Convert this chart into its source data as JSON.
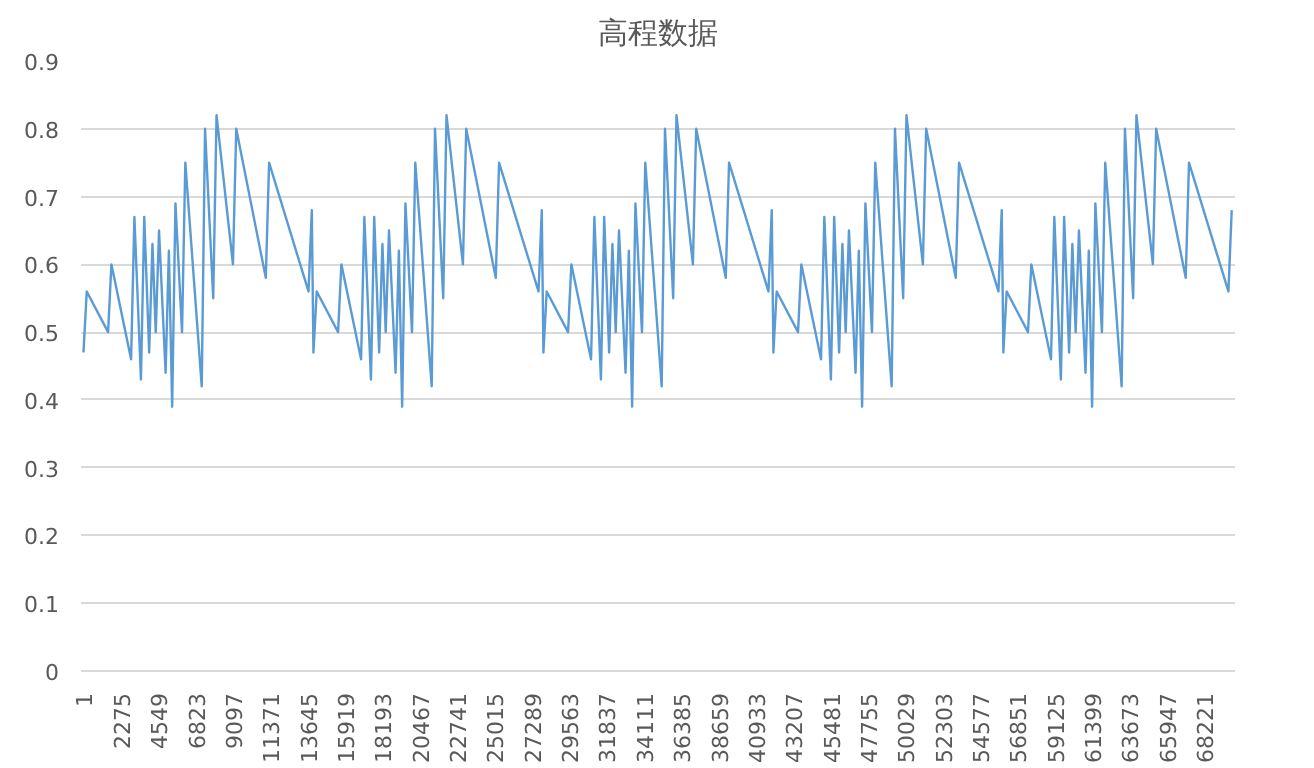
{
  "chart_data": {
    "type": "line",
    "title": "高程数据",
    "x": [
      1,
      200,
      1500,
      1700,
      2900,
      3100,
      3500,
      3700,
      4000,
      4200,
      4400,
      4600,
      5000,
      5200,
      5400,
      5600,
      6000,
      6200,
      7200,
      7400,
      7900,
      8100,
      9100,
      9300,
      11100,
      11300,
      13700,
      13900,
      14000,
      14200,
      15500,
      15700,
      16900,
      17100,
      17500,
      17700,
      18000,
      18200,
      18400,
      18600,
      19000,
      19200,
      19400,
      19600,
      20000,
      20200,
      21200,
      21400,
      21900,
      22100,
      23100,
      23300,
      25100,
      25300,
      27700,
      27900,
      28000,
      28200,
      29500,
      29700,
      30900,
      31100,
      31500,
      31700,
      32000,
      32200,
      32400,
      32600,
      33000,
      33200,
      33400,
      33600,
      34000,
      34200,
      35200,
      35400,
      35900,
      36100,
      37100,
      37300,
      39100,
      39300,
      41700,
      41900,
      42000,
      42200,
      43500,
      43700,
      44900,
      45100,
      45500,
      45700,
      46000,
      46200,
      46400,
      46600,
      47000,
      47200,
      47400,
      47600,
      48000,
      48200,
      49200,
      49400,
      49900,
      50100,
      51100,
      51300,
      53100,
      53300,
      55700,
      55900,
      56000,
      56200,
      57500,
      57700,
      58900,
      59100,
      59500,
      59700,
      60000,
      60200,
      60400,
      60600,
      61000,
      61200,
      61400,
      61600,
      62000,
      62200,
      63200,
      63400,
      63900,
      64100,
      65100,
      65300,
      67100,
      67300,
      69700,
      69900
    ],
    "series": [
      {
        "color": "#5b9bd5",
        "values": [
          0.47,
          0.56,
          0.5,
          0.6,
          0.46,
          0.67,
          0.43,
          0.67,
          0.47,
          0.63,
          0.5,
          0.65,
          0.44,
          0.62,
          0.39,
          0.69,
          0.5,
          0.75,
          0.42,
          0.8,
          0.55,
          0.82,
          0.6,
          0.8,
          0.58,
          0.75,
          0.56,
          0.68,
          0.47,
          0.56,
          0.5,
          0.6,
          0.46,
          0.67,
          0.43,
          0.67,
          0.47,
          0.63,
          0.5,
          0.65,
          0.44,
          0.62,
          0.39,
          0.69,
          0.5,
          0.75,
          0.42,
          0.8,
          0.55,
          0.82,
          0.6,
          0.8,
          0.58,
          0.75,
          0.56,
          0.68,
          0.47,
          0.56,
          0.5,
          0.6,
          0.46,
          0.67,
          0.43,
          0.67,
          0.47,
          0.63,
          0.5,
          0.65,
          0.44,
          0.62,
          0.39,
          0.69,
          0.5,
          0.75,
          0.42,
          0.8,
          0.55,
          0.82,
          0.6,
          0.8,
          0.58,
          0.75,
          0.56,
          0.68,
          0.47,
          0.56,
          0.5,
          0.6,
          0.46,
          0.67,
          0.43,
          0.67,
          0.47,
          0.63,
          0.5,
          0.65,
          0.44,
          0.62,
          0.39,
          0.69,
          0.5,
          0.75,
          0.42,
          0.8,
          0.55,
          0.82,
          0.6,
          0.8,
          0.58,
          0.75,
          0.56,
          0.68,
          0.47,
          0.56,
          0.5,
          0.6,
          0.46,
          0.67,
          0.43,
          0.67,
          0.47,
          0.63,
          0.5,
          0.65,
          0.44,
          0.62,
          0.39,
          0.69,
          0.5,
          0.75,
          0.42,
          0.8,
          0.55,
          0.82,
          0.6,
          0.8,
          0.58,
          0.75,
          0.56,
          0.68
        ]
      }
    ],
    "xlim": [
      -150,
      70100
    ],
    "xticks": [
      1,
      2275,
      4549,
      6823,
      9097,
      11371,
      13645,
      15919,
      18193,
      20467,
      22741,
      25015,
      27289,
      29563,
      31837,
      34111,
      36385,
      38659,
      40933,
      43207,
      45481,
      47755,
      50029,
      52303,
      54577,
      56851,
      59125,
      61399,
      63673,
      65947,
      68221
    ],
    "ylim": [
      0,
      0.9
    ],
    "yticks": [
      0,
      0.1,
      0.2,
      0.3,
      0.4,
      0.5,
      0.6,
      0.7,
      0.8,
      0.9
    ],
    "grid": "y"
  }
}
